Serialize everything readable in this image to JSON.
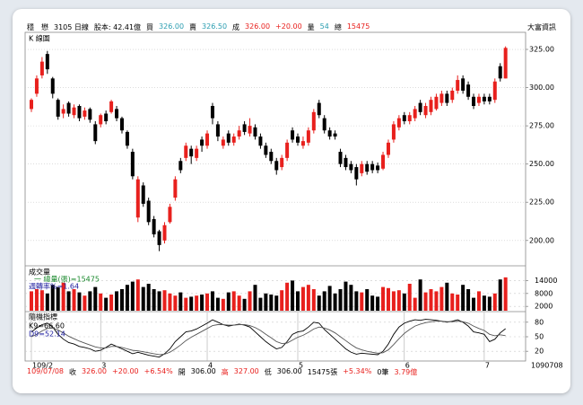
{
  "header": {
    "items": [
      {
        "text": "穩　懋",
        "color": "#000000"
      },
      {
        "text": "3105 日線",
        "color": "#000000"
      },
      {
        "text": "股本: 42.41億",
        "color": "#000000"
      },
      {
        "text": "買",
        "color": "#000000"
      },
      {
        "text": "326.00",
        "color": "#2a9db0"
      },
      {
        "text": "賣",
        "color": "#000000"
      },
      {
        "text": "326.50",
        "color": "#2a9db0"
      },
      {
        "text": "成",
        "color": "#000000"
      },
      {
        "text": "326.00",
        "color": "#e8201d"
      },
      {
        "text": "+20.00",
        "color": "#e8201d"
      },
      {
        "text": "量",
        "color": "#000000"
      },
      {
        "text": "54",
        "color": "#2a9db0"
      },
      {
        "text": "總",
        "color": "#000000"
      },
      {
        "text": "15475",
        "color": "#e8201d"
      }
    ],
    "brand": "大富資訊"
  },
  "footer": {
    "items": [
      {
        "text": "109/07/08",
        "color": "#e8201d"
      },
      {
        "text": "收",
        "color": "#000000"
      },
      {
        "text": "326.00",
        "color": "#e8201d"
      },
      {
        "text": "+20.00",
        "color": "#e8201d"
      },
      {
        "text": "+6.54%",
        "color": "#e8201d"
      },
      {
        "text": "開",
        "color": "#000000"
      },
      {
        "text": "306.00",
        "color": "#000000"
      },
      {
        "text": "高",
        "color": "#e8201d"
      },
      {
        "text": "327.00",
        "color": "#e8201d"
      },
      {
        "text": "低",
        "color": "#000000"
      },
      {
        "text": "306.00",
        "color": "#000000"
      },
      {
        "text": "15475張",
        "color": "#000000"
      },
      {
        "text": "+5.34%",
        "color": "#e8201d"
      },
      {
        "text": "0筆",
        "color": "#000000"
      },
      {
        "text": "3.79億",
        "color": "#e8201d"
      }
    ]
  },
  "chart_data": [
    {
      "type": "candlestick",
      "title": "K 線圖",
      "up_color": "#e8201d",
      "down_color": "#000000",
      "grid": true,
      "ylim": [
        184,
        335
      ],
      "yticks": [
        {
          "value": 200,
          "label": "200.00"
        },
        {
          "value": 225,
          "label": "225.00"
        },
        {
          "value": 250,
          "label": "250.00"
        },
        {
          "value": 275,
          "label": "275.00"
        },
        {
          "value": 300,
          "label": "300.00"
        },
        {
          "value": 325,
          "label": "325.00"
        }
      ],
      "open": [
        286,
        296,
        308,
        322,
        306,
        292,
        283,
        290,
        282,
        288,
        281,
        286,
        276,
        276,
        283,
        284,
        286,
        280,
        271,
        258,
        215,
        236,
        226,
        214,
        206,
        200,
        212,
        228,
        252,
        254,
        260,
        254,
        266,
        262,
        288,
        276,
        262,
        270,
        264,
        268,
        276,
        270,
        274,
        268,
        262,
        258,
        252,
        248,
        254,
        272,
        268,
        262,
        264,
        272,
        290,
        280,
        272,
        270,
        258,
        254,
        250,
        248,
        244,
        250,
        250,
        249,
        247,
        256,
        266,
        274,
        282,
        278,
        280,
        290,
        282,
        284,
        286,
        290,
        296,
        292,
        298,
        306,
        302,
        294,
        290,
        294,
        294,
        292,
        314,
        306
      ],
      "high": [
        293,
        308,
        320,
        324,
        307,
        293,
        289,
        291,
        289,
        289,
        287,
        287,
        278,
        283,
        285,
        292,
        288,
        281,
        272,
        260,
        242,
        238,
        228,
        216,
        207,
        212,
        224,
        242,
        254,
        264,
        262,
        262,
        268,
        272,
        290,
        278,
        268,
        272,
        270,
        275,
        278,
        280,
        276,
        270,
        264,
        260,
        254,
        256,
        266,
        274,
        270,
        268,
        274,
        286,
        292,
        282,
        274,
        272,
        260,
        256,
        252,
        250,
        252,
        252,
        252,
        251,
        258,
        266,
        278,
        282,
        284,
        284,
        288,
        292,
        290,
        294,
        296,
        298,
        298,
        300,
        308,
        308,
        304,
        296,
        296,
        296,
        296,
        306,
        316,
        327
      ],
      "low": [
        284,
        294,
        306,
        309,
        293,
        279,
        280,
        281,
        280,
        278,
        279,
        277,
        263,
        274,
        276,
        283,
        278,
        270,
        260,
        240,
        212,
        222,
        210,
        202,
        193,
        198,
        211,
        226,
        244,
        252,
        250,
        252,
        258,
        260,
        276,
        265,
        260,
        262,
        262,
        266,
        269,
        268,
        266,
        260,
        254,
        250,
        243,
        246,
        252,
        264,
        262,
        260,
        262,
        270,
        280,
        270,
        266,
        266,
        248,
        246,
        244,
        236,
        242,
        243,
        244,
        244,
        246,
        254,
        264,
        272,
        276,
        276,
        278,
        282,
        280,
        282,
        285,
        288,
        288,
        290,
        296,
        296,
        292,
        286,
        288,
        289,
        289,
        290,
        304,
        306
      ],
      "close": [
        292,
        306,
        317,
        312,
        296,
        281,
        286,
        283,
        287,
        280,
        285,
        279,
        265,
        282,
        278,
        291,
        280,
        272,
        262,
        242,
        240,
        224,
        212,
        204,
        197,
        210,
        222,
        240,
        246,
        262,
        255,
        260,
        262,
        270,
        280,
        268,
        266,
        264,
        268,
        272,
        271,
        275,
        268,
        262,
        256,
        252,
        246,
        254,
        264,
        266,
        264,
        265,
        272,
        284,
        282,
        272,
        268,
        268,
        250,
        248,
        246,
        240,
        250,
        245,
        246,
        246,
        256,
        264,
        276,
        280,
        278,
        282,
        286,
        284,
        288,
        292,
        294,
        296,
        290,
        298,
        305,
        298,
        294,
        288,
        294,
        291,
        291,
        304,
        306,
        326
      ]
    },
    {
      "type": "bar",
      "title": "成交量",
      "annotations": [
        "一 總量(張)=15475",
        "週轉率%=1.64"
      ],
      "annotation_colors": [
        "#1b8a2e",
        "#2020a0"
      ],
      "ylim": [
        0,
        20000
      ],
      "yticks": [
        2000,
        8000,
        14000
      ],
      "values": [
        9000,
        10000,
        9500,
        8000,
        12000,
        11000,
        13000,
        9000,
        10000,
        8500,
        7000,
        9000,
        11000,
        8000,
        6000,
        7500,
        9000,
        10000,
        12000,
        13500,
        14500,
        11000,
        12500,
        10000,
        9000,
        9500,
        8000,
        7000,
        8500,
        6000,
        6500,
        7000,
        7500,
        8000,
        9000,
        6000,
        5500,
        8500,
        9000,
        7000,
        5500,
        9000,
        12000,
        6000,
        8000,
        7500,
        7000,
        9500,
        13000,
        14000,
        9000,
        11000,
        12000,
        10000,
        7000,
        9000,
        11500,
        8000,
        10000,
        13500,
        12000,
        9000,
        8500,
        10000,
        7000,
        6500,
        11000,
        10500,
        9000,
        9500,
        8000,
        12500,
        6000,
        14500,
        8500,
        10000,
        9000,
        11000,
        13000,
        8000,
        7500,
        12000,
        10000,
        6000,
        9000,
        7000,
        6500,
        8000,
        14500,
        15475
      ]
    },
    {
      "type": "line",
      "title": "隨機指標",
      "date_label": "1090708",
      "ylim": [
        0,
        100
      ],
      "yticks": [
        20,
        50,
        80
      ],
      "categories": [
        "109/2",
        null,
        null,
        null,
        null,
        null,
        null,
        null,
        null,
        null,
        null,
        null,
        null,
        "3",
        null,
        null,
        null,
        null,
        null,
        null,
        null,
        null,
        null,
        null,
        null,
        null,
        null,
        null,
        null,
        null,
        null,
        null,
        null,
        "4",
        null,
        null,
        null,
        null,
        null,
        null,
        null,
        null,
        null,
        null,
        null,
        null,
        null,
        null,
        null,
        null,
        "5",
        null,
        null,
        null,
        null,
        null,
        null,
        null,
        null,
        null,
        null,
        null,
        null,
        null,
        null,
        null,
        null,
        null,
        null,
        null,
        "6",
        null,
        null,
        null,
        null,
        null,
        null,
        null,
        null,
        null,
        null,
        null,
        null,
        null,
        null,
        "7",
        null,
        null,
        null,
        null
      ],
      "series": [
        {
          "name": "K9=66.60",
          "color": "#000000",
          "label_color": "#000000",
          "values": [
            60,
            68,
            75,
            78,
            70,
            55,
            45,
            38,
            35,
            30,
            28,
            25,
            20,
            22,
            28,
            35,
            30,
            25,
            20,
            15,
            18,
            15,
            12,
            10,
            8,
            15,
            25,
            40,
            50,
            60,
            62,
            66,
            72,
            78,
            85,
            80,
            75,
            72,
            74,
            76,
            74,
            70,
            60,
            50,
            40,
            32,
            25,
            28,
            40,
            55,
            60,
            62,
            70,
            80,
            78,
            65,
            55,
            45,
            35,
            25,
            18,
            14,
            16,
            15,
            14,
            13,
            20,
            35,
            55,
            70,
            78,
            82,
            85,
            84,
            86,
            85,
            84,
            82,
            80,
            82,
            85,
            80,
            72,
            60,
            58,
            55,
            40,
            45,
            58,
            66.6
          ]
        },
        {
          "name": "D9=52.14",
          "color": "#555555",
          "label_color": "#2020a0",
          "values": [
            50,
            55,
            62,
            67,
            68,
            64,
            58,
            51,
            46,
            41,
            37,
            33,
            29,
            27,
            27,
            30,
            30,
            28,
            25,
            22,
            21,
            19,
            17,
            15,
            13,
            14,
            18,
            25,
            33,
            42,
            49,
            55,
            61,
            67,
            73,
            75,
            75,
            74,
            74,
            75,
            75,
            73,
            69,
            63,
            55,
            48,
            40,
            36,
            37,
            43,
            49,
            53,
            59,
            66,
            70,
            68,
            64,
            58,
            50,
            42,
            34,
            27,
            23,
            20,
            18,
            16,
            17,
            23,
            34,
            46,
            57,
            65,
            72,
            76,
            79,
            81,
            82,
            82,
            81,
            81,
            82,
            81,
            78,
            72,
            67,
            63,
            55,
            52,
            54,
            52.14
          ]
        }
      ]
    }
  ]
}
